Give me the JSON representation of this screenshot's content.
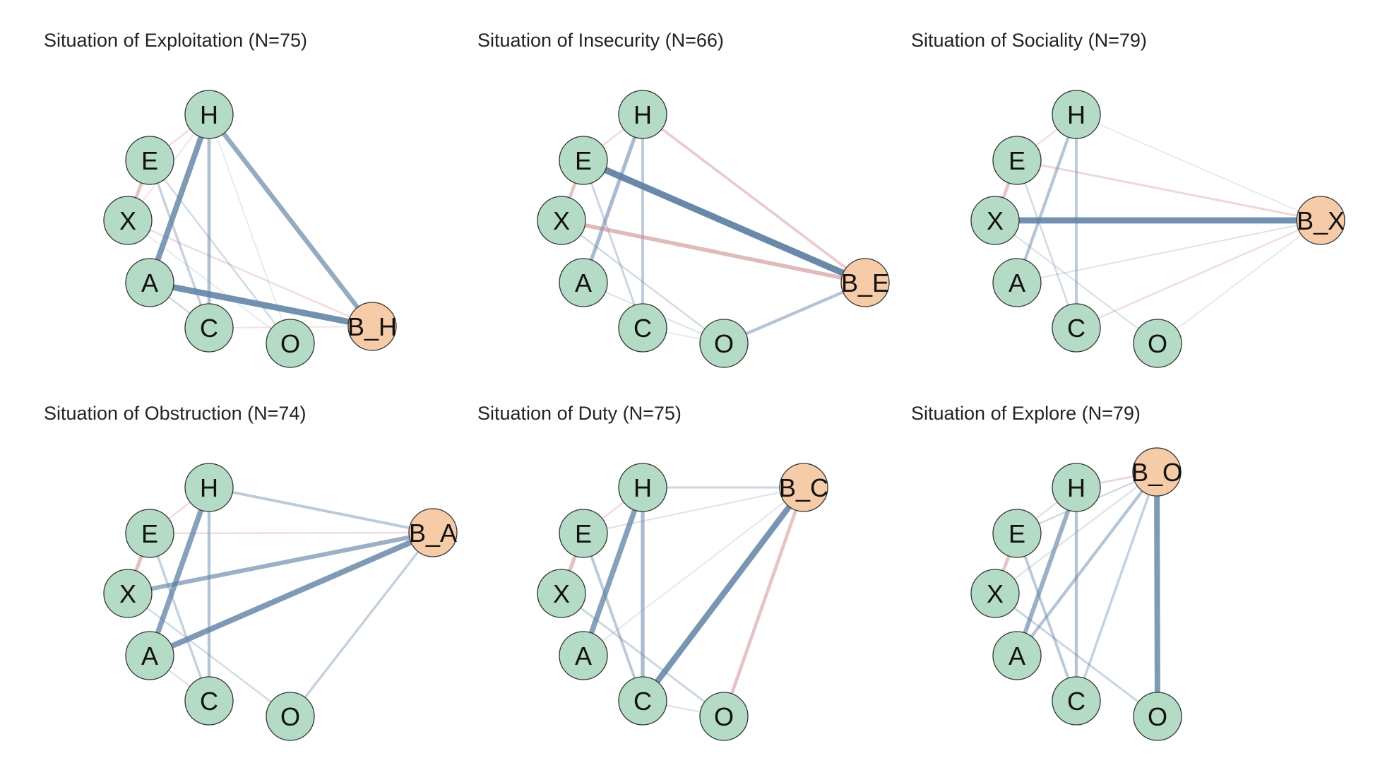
{
  "figure": {
    "panels": [
      {
        "title": "Situation of Exploitation (N=75)",
        "nodes": [
          "H",
          "E",
          "X",
          "A",
          "C",
          "O",
          "B_H"
        ],
        "behavior_node": "B_H",
        "edges": [
          {
            "from": "H",
            "to": "A",
            "sign": "positive",
            "strength": 0.75
          },
          {
            "from": "H",
            "to": "B_H",
            "sign": "positive",
            "strength": 0.6
          },
          {
            "from": "A",
            "to": "B_H",
            "sign": "positive",
            "strength": 0.85
          },
          {
            "from": "H",
            "to": "C",
            "sign": "positive",
            "strength": 0.4
          },
          {
            "from": "E",
            "to": "C",
            "sign": "positive",
            "strength": 0.25
          },
          {
            "from": "E",
            "to": "X",
            "sign": "negative",
            "strength": 0.4
          },
          {
            "from": "H",
            "to": "E",
            "sign": "negative",
            "strength": 0.15
          },
          {
            "from": "X",
            "to": "B_H",
            "sign": "negative",
            "strength": 0.15
          },
          {
            "from": "A",
            "to": "C",
            "sign": "positive",
            "strength": 0.15
          },
          {
            "from": "E",
            "to": "O",
            "sign": "positive",
            "strength": 0.15
          },
          {
            "from": "C",
            "to": "B_H",
            "sign": "negative",
            "strength": 0.1
          },
          {
            "from": "X",
            "to": "O",
            "sign": "positive",
            "strength": 0.05
          },
          {
            "from": "H",
            "to": "O",
            "sign": "positive",
            "strength": 0.05
          },
          {
            "from": "X",
            "to": "H",
            "sign": "negative",
            "strength": 0.1
          }
        ]
      },
      {
        "title": "Situation of Insecurity (N=66)",
        "nodes": [
          "H",
          "E",
          "X",
          "A",
          "C",
          "O",
          "B_E"
        ],
        "behavior_node": "B_E",
        "edges": [
          {
            "from": "E",
            "to": "B_E",
            "sign": "positive",
            "strength": 0.9
          },
          {
            "from": "X",
            "to": "B_E",
            "sign": "negative",
            "strength": 0.5
          },
          {
            "from": "H",
            "to": "B_E",
            "sign": "negative",
            "strength": 0.3
          },
          {
            "from": "O",
            "to": "B_E",
            "sign": "positive",
            "strength": 0.35
          },
          {
            "from": "H",
            "to": "A",
            "sign": "positive",
            "strength": 0.45
          },
          {
            "from": "H",
            "to": "C",
            "sign": "positive",
            "strength": 0.3
          },
          {
            "from": "E",
            "to": "X",
            "sign": "negative",
            "strength": 0.4
          },
          {
            "from": "E",
            "to": "C",
            "sign": "positive",
            "strength": 0.2
          },
          {
            "from": "X",
            "to": "O",
            "sign": "positive",
            "strength": 0.15
          },
          {
            "from": "H",
            "to": "E",
            "sign": "negative",
            "strength": 0.15
          },
          {
            "from": "A",
            "to": "O",
            "sign": "positive",
            "strength": 0.08
          },
          {
            "from": "C",
            "to": "O",
            "sign": "positive",
            "strength": 0.05
          }
        ]
      },
      {
        "title": "Situation of Sociality (N=79)",
        "nodes": [
          "H",
          "E",
          "X",
          "A",
          "C",
          "O",
          "B_X"
        ],
        "behavior_node": "B_X",
        "edges": [
          {
            "from": "X",
            "to": "B_X",
            "sign": "positive",
            "strength": 0.85
          },
          {
            "from": "H",
            "to": "A",
            "sign": "positive",
            "strength": 0.35
          },
          {
            "from": "H",
            "to": "C",
            "sign": "positive",
            "strength": 0.3
          },
          {
            "from": "E",
            "to": "B_X",
            "sign": "negative",
            "strength": 0.2
          },
          {
            "from": "C",
            "to": "B_X",
            "sign": "negative",
            "strength": 0.15
          },
          {
            "from": "E",
            "to": "X",
            "sign": "negative",
            "strength": 0.4
          },
          {
            "from": "A",
            "to": "B_X",
            "sign": "positive",
            "strength": 0.08
          },
          {
            "from": "H",
            "to": "B_X",
            "sign": "positive",
            "strength": 0.05
          },
          {
            "from": "O",
            "to": "B_X",
            "sign": "positive",
            "strength": 0.05
          },
          {
            "from": "E",
            "to": "C",
            "sign": "positive",
            "strength": 0.15
          },
          {
            "from": "H",
            "to": "E",
            "sign": "negative",
            "strength": 0.15
          },
          {
            "from": "X",
            "to": "O",
            "sign": "positive",
            "strength": 0.1
          }
        ]
      },
      {
        "title": "Situation of Obstruction (N=74)",
        "nodes": [
          "H",
          "E",
          "X",
          "A",
          "C",
          "O",
          "B_A"
        ],
        "behavior_node": "B_A",
        "edges": [
          {
            "from": "A",
            "to": "B_A",
            "sign": "positive",
            "strength": 0.75
          },
          {
            "from": "X",
            "to": "B_A",
            "sign": "positive",
            "strength": 0.55
          },
          {
            "from": "H",
            "to": "B_A",
            "sign": "positive",
            "strength": 0.3
          },
          {
            "from": "O",
            "to": "B_A",
            "sign": "positive",
            "strength": 0.25
          },
          {
            "from": "E",
            "to": "B_A",
            "sign": "negative",
            "strength": 0.15
          },
          {
            "from": "H",
            "to": "A",
            "sign": "positive",
            "strength": 0.7
          },
          {
            "from": "H",
            "to": "C",
            "sign": "positive",
            "strength": 0.35
          },
          {
            "from": "E",
            "to": "X",
            "sign": "negative",
            "strength": 0.45
          },
          {
            "from": "E",
            "to": "C",
            "sign": "positive",
            "strength": 0.25
          },
          {
            "from": "X",
            "to": "O",
            "sign": "positive",
            "strength": 0.15
          },
          {
            "from": "H",
            "to": "E",
            "sign": "negative",
            "strength": 0.15
          },
          {
            "from": "A",
            "to": "C",
            "sign": "positive",
            "strength": 0.1
          }
        ]
      },
      {
        "title": "Situation of Duty (N=75)",
        "nodes": [
          "H",
          "E",
          "X",
          "A",
          "C",
          "O",
          "B_C"
        ],
        "behavior_node": "B_C",
        "edges": [
          {
            "from": "C",
            "to": "B_C",
            "sign": "positive",
            "strength": 0.8
          },
          {
            "from": "O",
            "to": "B_C",
            "sign": "negative",
            "strength": 0.4
          },
          {
            "from": "H",
            "to": "B_C",
            "sign": "positive",
            "strength": 0.2
          },
          {
            "from": "E",
            "to": "B_C",
            "sign": "positive",
            "strength": 0.08
          },
          {
            "from": "H",
            "to": "A",
            "sign": "positive",
            "strength": 0.7
          },
          {
            "from": "H",
            "to": "C",
            "sign": "positive",
            "strength": 0.45
          },
          {
            "from": "E",
            "to": "X",
            "sign": "negative",
            "strength": 0.45
          },
          {
            "from": "E",
            "to": "C",
            "sign": "positive",
            "strength": 0.3
          },
          {
            "from": "X",
            "to": "O",
            "sign": "positive",
            "strength": 0.2
          },
          {
            "from": "H",
            "to": "E",
            "sign": "negative",
            "strength": 0.15
          },
          {
            "from": "C",
            "to": "O",
            "sign": "positive",
            "strength": 0.1
          },
          {
            "from": "A",
            "to": "B_C",
            "sign": "positive",
            "strength": 0.06
          }
        ]
      },
      {
        "title": "Situation of Explore (N=79)",
        "nodes": [
          "H",
          "E",
          "X",
          "A",
          "C",
          "O",
          "B_O"
        ],
        "behavior_node": "B_O",
        "edges": [
          {
            "from": "O",
            "to": "B_O",
            "sign": "positive",
            "strength": 0.75
          },
          {
            "from": "A",
            "to": "B_O",
            "sign": "positive",
            "strength": 0.35
          },
          {
            "from": "C",
            "to": "B_O",
            "sign": "positive",
            "strength": 0.25
          },
          {
            "from": "H",
            "to": "B_O",
            "sign": "negative",
            "strength": 0.2
          },
          {
            "from": "E",
            "to": "B_O",
            "sign": "positive",
            "strength": 0.15
          },
          {
            "from": "X",
            "to": "B_O",
            "sign": "positive",
            "strength": 0.1
          },
          {
            "from": "H",
            "to": "A",
            "sign": "positive",
            "strength": 0.55
          },
          {
            "from": "H",
            "to": "C",
            "sign": "positive",
            "strength": 0.35
          },
          {
            "from": "E",
            "to": "X",
            "sign": "negative",
            "strength": 0.4
          },
          {
            "from": "E",
            "to": "C",
            "sign": "positive",
            "strength": 0.3
          },
          {
            "from": "X",
            "to": "O",
            "sign": "positive",
            "strength": 0.2
          },
          {
            "from": "H",
            "to": "E",
            "sign": "negative",
            "strength": 0.15
          }
        ]
      }
    ]
  },
  "colors": {
    "positive_edge": "#5d7fa3",
    "negative_edge": "#c9868a",
    "trait_node_fill": "#b4dbc5",
    "behavior_node_fill": "#f6cba8",
    "node_stroke": "#333333"
  }
}
